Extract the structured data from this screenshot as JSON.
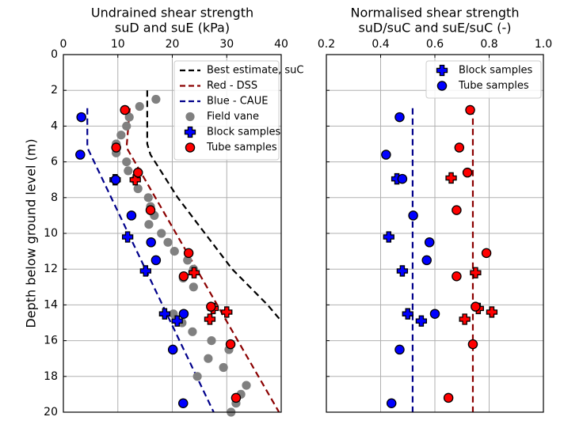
{
  "chart_data": [
    {
      "type": "scatter",
      "title": "Undrained shear strength",
      "xlabel": "suD and suE (kPa)",
      "ylabel": "Depth below ground level (m)",
      "xlim": [
        0,
        40
      ],
      "xticks": [
        0,
        10,
        20,
        30,
        40
      ],
      "ylim": [
        0,
        20
      ],
      "yticks": [
        0,
        2,
        4,
        6,
        8,
        10,
        12,
        14,
        16,
        18,
        20
      ],
      "invert_y": true,
      "show_ytick_labels": true,
      "grid": true,
      "legend": "upper right",
      "series": [
        {
          "name": "Best estimate, suC",
          "kind": "line",
          "color": "#000000",
          "x": [
            15.4,
            15.4,
            16,
            21,
            26,
            31,
            37.5,
            40
          ],
          "y": [
            2,
            5,
            5.6,
            8,
            10,
            12,
            14,
            14.9
          ]
        },
        {
          "name": "Red - DSS",
          "kind": "line",
          "color": "#8b0000",
          "x": [
            12.2,
            11.6,
            39.6
          ],
          "y": [
            3,
            5.2,
            20
          ]
        },
        {
          "name": "Blue - CAUE",
          "kind": "line",
          "color": "#00008b",
          "x": [
            4.4,
            4.4,
            27.6
          ],
          "y": [
            3,
            5.2,
            20
          ]
        },
        {
          "name": "Field vane",
          "kind": "scatter",
          "marker": "circle",
          "color": "#808080",
          "x": [
            17.0,
            14.0,
            12.1,
            11.6,
            10.6,
            9.7,
            9.7,
            11.6,
            11.9,
            13.1,
            13.7,
            15.6,
            16.0,
            16.7,
            15.7,
            18.0,
            19.2,
            20.4,
            22.8,
            23.9,
            22.0,
            23.9,
            20.2,
            21.8,
            23.7,
            27.2,
            30.4,
            26.6,
            29.4,
            24.6,
            33.6,
            32.6,
            31.7,
            30.8
          ],
          "y": [
            2.5,
            2.9,
            3.5,
            4.0,
            4.5,
            5.0,
            5.5,
            6.0,
            6.5,
            7.0,
            7.5,
            8.0,
            8.5,
            9.0,
            9.5,
            10.0,
            10.5,
            11.0,
            11.5,
            12.0,
            12.5,
            13.0,
            14.5,
            15.0,
            15.5,
            16.0,
            16.5,
            17.0,
            17.5,
            18.0,
            18.5,
            19.0,
            19.5,
            20.0
          ]
        },
        {
          "kind": "scatter",
          "marker": "plus",
          "color": "#ff0000",
          "edgecolor": "#000000",
          "x": [
            13.2,
            24.0,
            27.5,
            30.0,
            26.9
          ],
          "y": [
            7.0,
            12.2,
            14.2,
            14.4,
            14.8
          ]
        },
        {
          "kind": "scatter",
          "marker": "circle",
          "color": "#ff0000",
          "edgecolor": "#000000",
          "x": [
            11.3,
            9.7,
            13.7,
            16.0,
            23.0,
            22.1,
            27.1,
            30.7,
            31.7
          ],
          "y": [
            3.1,
            5.2,
            6.6,
            8.7,
            11.1,
            12.4,
            14.1,
            16.2,
            19.2
          ]
        },
        {
          "name": "Block samples",
          "kind": "scatter",
          "marker": "plus",
          "color": "#0000ff",
          "edgecolor": "#000000",
          "x": [
            9.5,
            11.8,
            15.1,
            18.6,
            20.9
          ],
          "y": [
            7.0,
            10.2,
            12.1,
            14.5,
            14.9
          ]
        },
        {
          "name": "Tube samples",
          "kind": "scatter",
          "marker": "circle",
          "color": "#ff0000",
          "edgecolor": "#000000",
          "legend_color": "#ff0000",
          "x": [
            3.3,
            3.1,
            9.6,
            12.5,
            16.1,
            17.0,
            22.1,
            20.1,
            22.0
          ],
          "y": [
            3.5,
            5.6,
            7.0,
            9.0,
            10.5,
            11.5,
            14.5,
            16.5,
            19.5
          ],
          "point_color": "#0000ff"
        }
      ]
    },
    {
      "type": "scatter",
      "title": "Normalised shear strength",
      "xlabel": "suD/suC and suE/suC (-)",
      "xlim": [
        0.2,
        1.0
      ],
      "xticks": [
        0.2,
        0.4,
        0.6,
        0.8,
        {
          "value": 1,
          "label": "1.0"
        }
      ],
      "ylim": [
        0,
        20
      ],
      "yticks": [
        0,
        2,
        4,
        6,
        8,
        10,
        12,
        14,
        16,
        18,
        20
      ],
      "invert_y": true,
      "show_ytick_labels": false,
      "grid": true,
      "legend": "upper right",
      "series": [
        {
          "kind": "line",
          "color": "#00008b",
          "x": [
            0.518,
            0.518
          ],
          "y": [
            3,
            20
          ]
        },
        {
          "kind": "line",
          "color": "#8b0000",
          "x": [
            0.74,
            0.74
          ],
          "y": [
            3,
            20
          ]
        },
        {
          "name": "Block samples",
          "kind": "scatter",
          "marker": "plus",
          "color": "#0000ff",
          "edgecolor": "#000000",
          "x": [
            0.46,
            0.43,
            0.48,
            0.5,
            0.55
          ],
          "y": [
            6.95,
            10.2,
            12.1,
            14.5,
            14.9
          ]
        },
        {
          "name": "Tube samples",
          "kind": "scatter",
          "marker": "circle",
          "color": "#0000ff",
          "edgecolor": "#000000",
          "x": [
            0.47,
            0.42,
            0.48,
            0.52,
            0.58,
            0.57,
            0.6,
            0.47,
            0.44
          ],
          "y": [
            3.5,
            5.6,
            6.95,
            9.0,
            10.5,
            11.5,
            14.5,
            16.5,
            19.5
          ]
        },
        {
          "kind": "scatter",
          "marker": "plus",
          "color": "#ff0000",
          "edgecolor": "#000000",
          "x": [
            0.66,
            0.75,
            0.76,
            0.71,
            0.81
          ],
          "y": [
            6.9,
            12.2,
            14.2,
            14.8,
            14.4
          ]
        },
        {
          "kind": "scatter",
          "marker": "circle",
          "color": "#ff0000",
          "edgecolor": "#000000",
          "x": [
            0.73,
            0.69,
            0.72,
            0.68,
            0.79,
            0.68,
            0.75,
            0.74,
            0.65
          ],
          "y": [
            3.1,
            5.2,
            6.6,
            8.7,
            11.1,
            12.4,
            14.1,
            16.2,
            19.2
          ]
        }
      ]
    }
  ]
}
